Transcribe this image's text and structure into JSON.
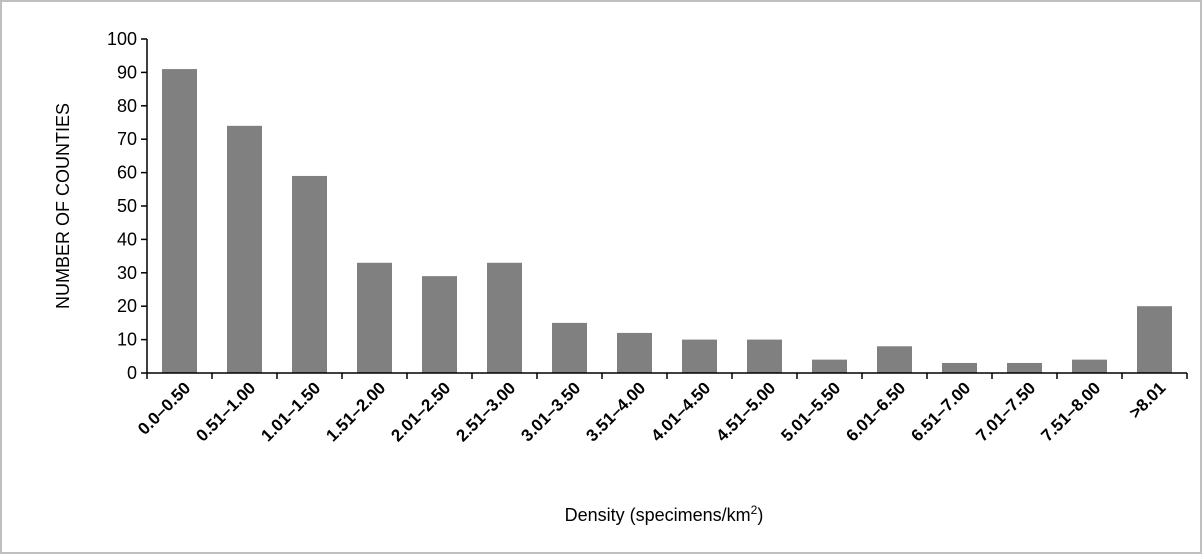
{
  "chart_data": {
    "type": "bar",
    "title": "",
    "xlabel": "Density (specimens/km",
    "xlabel_superscript": "2",
    "xlabel_suffix": ")",
    "ylabel": "NUMBER OF COUNTIES",
    "ylim": [
      0,
      100
    ],
    "yticks": [
      0,
      10,
      20,
      30,
      40,
      50,
      60,
      70,
      80,
      90,
      100
    ],
    "grid": false,
    "legend": "none",
    "bar_color": "#808080",
    "categories": [
      "0.0–0.50",
      "0.51–1.00",
      "1.01–1.50",
      "1.51–2.00",
      "2.01–2.50",
      "2.51–3.00",
      "3.01–3.50",
      "3.51–4.00",
      "4.01–4.50",
      "4.51–5.00",
      "5.01–5.50",
      "6.01–6.50",
      "6.51–7.00",
      "7.01–7.50",
      "7.51–8.00",
      ">8.01"
    ],
    "values": [
      91,
      74,
      59,
      33,
      29,
      33,
      15,
      12,
      10,
      10,
      4,
      8,
      3,
      3,
      4,
      20
    ]
  }
}
